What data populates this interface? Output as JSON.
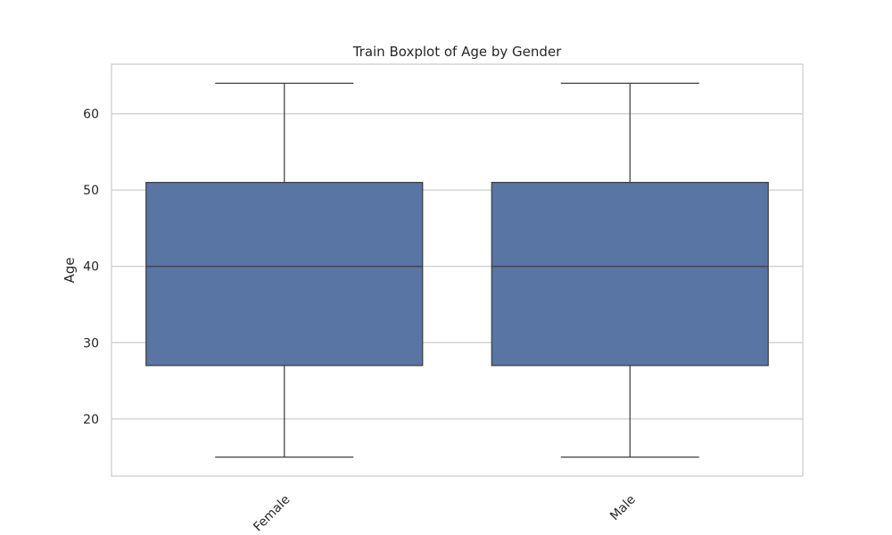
{
  "chart_data": {
    "type": "boxplot",
    "title": "Train Boxplot of Age by Gender",
    "xlabel": "",
    "ylabel": "Age",
    "ylim": [
      12.5,
      66.5
    ],
    "yticks": [
      20,
      30,
      40,
      50,
      60
    ],
    "grid": "horizontal",
    "box_color": "#5875a4",
    "edge_color": "#3f3f3f",
    "grid_color": "#cccccc",
    "categories": [
      "Female",
      "Male"
    ],
    "boxes": [
      {
        "category": "Female",
        "min": 15,
        "q1": 27,
        "median": 40,
        "q3": 51,
        "max": 64
      },
      {
        "category": "Male",
        "min": 15,
        "q1": 27,
        "median": 40,
        "q3": 51,
        "max": 64
      }
    ]
  }
}
